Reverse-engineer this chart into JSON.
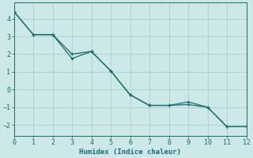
{
  "xlabel": "Humidex (Indice chaleur)",
  "background_color": "#cce8e8",
  "grid_color": "#aacfcf",
  "line_color": "#1a6b6b",
  "xlim": [
    0,
    12
  ],
  "ylim": [
    -2.6,
    4.9
  ],
  "xticks": [
    0,
    1,
    2,
    3,
    4,
    5,
    6,
    7,
    8,
    9,
    10,
    11,
    12
  ],
  "yticks": [
    -2,
    -1,
    0,
    1,
    2,
    3,
    4
  ],
  "series1_x": [
    0,
    1,
    2,
    3,
    4,
    5,
    6,
    7,
    8,
    9,
    10,
    11,
    12
  ],
  "series1_y": [
    4.4,
    3.1,
    3.1,
    1.75,
    2.15,
    1.05,
    -0.3,
    -0.9,
    -0.9,
    -0.7,
    -1.0,
    -2.1,
    -2.1
  ],
  "series2_x": [
    0,
    1,
    2,
    3,
    4,
    5,
    6,
    7,
    8,
    9,
    10,
    11,
    12
  ],
  "series2_y": [
    4.4,
    3.1,
    3.1,
    2.0,
    2.15,
    1.05,
    -0.3,
    -0.9,
    -0.9,
    -0.85,
    -1.0,
    -2.1,
    -2.1
  ],
  "marker": "+",
  "marker_size": 3,
  "line_width": 0.9,
  "xlabel_fontsize": 6.5,
  "tick_fontsize": 6
}
